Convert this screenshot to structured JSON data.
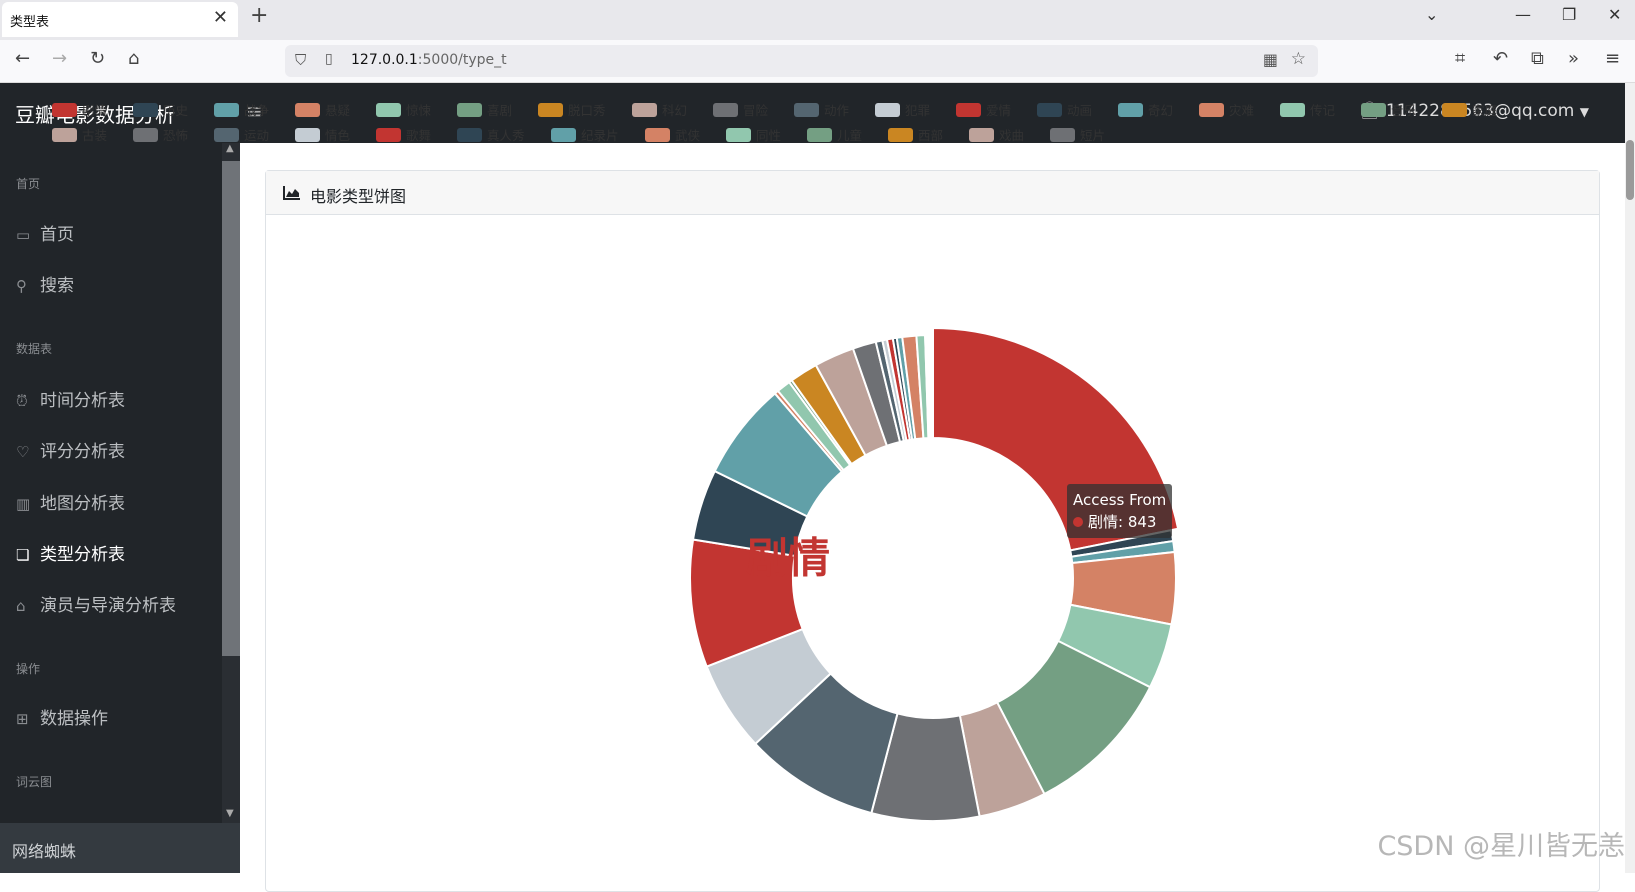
{
  "browser": {
    "tab_title": "类型表",
    "url_host": "127.0.0.1",
    "url_path": ":5000/type_t"
  },
  "app": {
    "brand": "豆瓣电影数据分析",
    "user_email": "1142284563@qq.com"
  },
  "sidebar": {
    "sections": [
      {
        "heading": "首页",
        "items": [
          {
            "label": "首页",
            "icon": "monitor-icon"
          },
          {
            "label": "搜索",
            "icon": "search-icon"
          }
        ]
      },
      {
        "heading": "数据表",
        "items": [
          {
            "label": "时间分析表",
            "icon": "alarm-clock-icon"
          },
          {
            "label": "评分分析表",
            "icon": "heart-icon"
          },
          {
            "label": "地图分析表",
            "icon": "map-icon"
          },
          {
            "label": "类型分析表",
            "icon": "clone-icon",
            "active": true
          },
          {
            "label": "演员与导演分析表",
            "icon": "bank-icon"
          }
        ]
      },
      {
        "heading": "操作",
        "items": [
          {
            "label": "数据操作",
            "icon": "table-icon"
          }
        ]
      },
      {
        "heading": "词云图",
        "items": []
      }
    ],
    "footer": "网络蜘蛛"
  },
  "card": {
    "title": "电影类型饼图"
  },
  "chart_data": {
    "type": "pie",
    "center_label": "剧情",
    "legend": [
      "剧情",
      "历史",
      "战争",
      "悬疑",
      "惊悚",
      "喜剧",
      "脱口秀",
      "科幻",
      "冒险",
      "动作",
      "犯罪",
      "爱情",
      "动画",
      "奇幻",
      "灾难",
      "传记",
      "音乐",
      "家庭",
      "古装",
      "恐怖",
      "运动",
      "情色",
      "歌舞",
      "真人秀",
      "纪录片",
      "武侠",
      "同性",
      "儿童",
      "西部",
      "戏曲",
      "短片"
    ],
    "colors": [
      "#c23531",
      "#2f4554",
      "#61a0a8",
      "#d48265",
      "#91c7ae",
      "#749f83",
      "#ca8622",
      "#bda29a",
      "#6e7074",
      "#546570",
      "#c4ccd3"
    ],
    "slices": [
      {
        "name": "剧情",
        "value": 843
      },
      {
        "name": "历史",
        "value": 28
      },
      {
        "name": "战争",
        "value": 28
      },
      {
        "name": "悬疑",
        "value": 184
      },
      {
        "name": "惊悚",
        "value": 168
      },
      {
        "name": "喜剧",
        "value": 386
      },
      {
        "name": "脱口秀",
        "value": 0
      },
      {
        "name": "科幻",
        "value": 174
      },
      {
        "name": "冒险",
        "value": 276
      },
      {
        "name": "动作",
        "value": 346
      },
      {
        "name": "犯罪",
        "value": 232
      },
      {
        "name": "爱情",
        "value": 327
      },
      {
        "name": "动画",
        "value": 182
      },
      {
        "name": "奇幻",
        "value": 250
      },
      {
        "name": "灾难",
        "value": 10
      },
      {
        "name": "传记",
        "value": 36
      },
      {
        "name": "音乐",
        "value": 8
      },
      {
        "name": "家庭",
        "value": 72
      },
      {
        "name": "古装",
        "value": 103
      },
      {
        "name": "恐怖",
        "value": 60
      },
      {
        "name": "运动",
        "value": 17
      },
      {
        "name": "情色",
        "value": 12
      },
      {
        "name": "歌舞",
        "value": 15
      },
      {
        "name": "真人秀",
        "value": 10
      },
      {
        "name": "纪录片",
        "value": 14
      },
      {
        "name": "武侠",
        "value": 36
      },
      {
        "name": "同性",
        "value": 22
      },
      {
        "name": "儿童",
        "value": 5
      },
      {
        "name": "西部",
        "value": 5
      },
      {
        "name": "戏曲",
        "value": 5
      },
      {
        "name": "短片",
        "value": 5
      }
    ],
    "tooltip": {
      "title": "Access From",
      "series_name": "剧情",
      "value_text": "843"
    }
  },
  "watermark": "CSDN @星川皆无恙"
}
